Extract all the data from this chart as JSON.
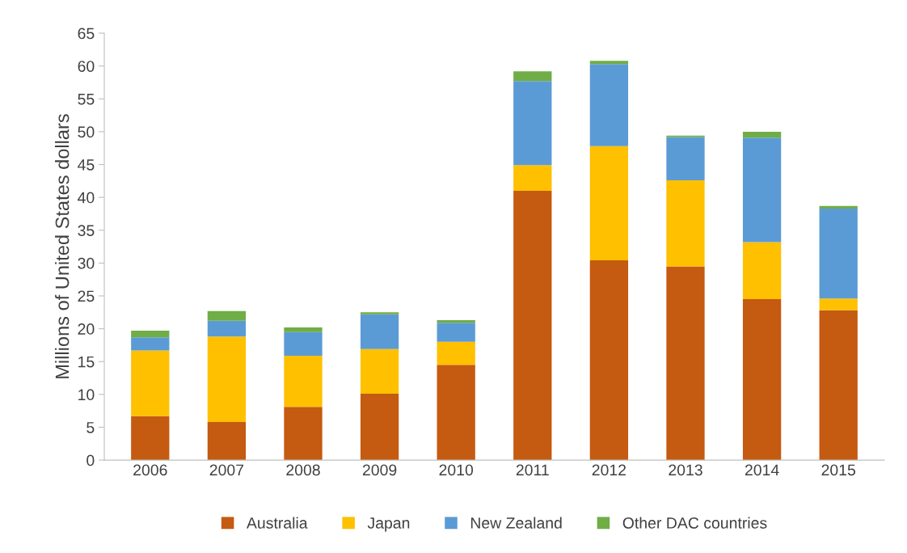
{
  "chart_data": {
    "type": "bar",
    "stacked": true,
    "ylabel": "Millions of United States dollars",
    "categories": [
      "2006",
      "2007",
      "2008",
      "2009",
      "2010",
      "2011",
      "2012",
      "2013",
      "2014",
      "2015"
    ],
    "series": [
      {
        "name": "Australia",
        "color": "#c55a11",
        "values": [
          6.7,
          5.8,
          8.1,
          10.1,
          14.5,
          41.0,
          30.4,
          29.5,
          24.5,
          22.8
        ]
      },
      {
        "name": "Japan",
        "color": "#ffc000",
        "values": [
          10.0,
          13.0,
          7.8,
          6.8,
          3.5,
          3.9,
          17.4,
          13.1,
          8.7,
          1.8
        ]
      },
      {
        "name": "New Zealand",
        "color": "#5b9bd5",
        "values": [
          2.0,
          2.4,
          3.6,
          5.3,
          2.9,
          12.8,
          12.5,
          6.6,
          15.9,
          13.7
        ]
      },
      {
        "name": "Other DAC countries",
        "color": "#70ad47",
        "values": [
          1.0,
          1.5,
          0.7,
          0.3,
          0.4,
          1.5,
          0.5,
          0.2,
          0.9,
          0.4
        ]
      }
    ],
    "ylim": [
      0,
      65
    ],
    "yticks": [
      0,
      5,
      10,
      15,
      20,
      25,
      30,
      35,
      40,
      45,
      50,
      55,
      60,
      65
    ],
    "grid": false,
    "legend": "bottom"
  }
}
